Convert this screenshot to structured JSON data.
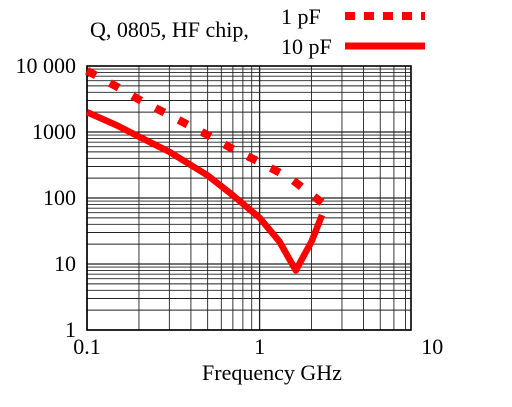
{
  "chart_data": {
    "type": "line",
    "title": "Q, 0805, HF chip,",
    "xlabel": "Frequency GHz",
    "ylabel": "",
    "xscale": "log",
    "yscale": "log",
    "xlim": [
      0.1,
      7
    ],
    "ylim": [
      1,
      10000
    ],
    "grid": true,
    "legend_position": "top-right",
    "x_ticks": [
      {
        "value": 0.1,
        "label": "0.1"
      },
      {
        "value": 1,
        "label": "1"
      },
      {
        "value": 10,
        "label": "10"
      }
    ],
    "y_ticks": [
      {
        "value": 1,
        "label": "1"
      },
      {
        "value": 10,
        "label": "10"
      },
      {
        "value": 100,
        "label": "100"
      },
      {
        "value": 1000,
        "label": "1000"
      },
      {
        "value": 10000,
        "label": "10 000"
      }
    ],
    "series": [
      {
        "name": "1 pF",
        "style": "dotted",
        "color": "#ff0000",
        "points": [
          [
            0.1,
            8500
          ],
          [
            0.15,
            4800
          ],
          [
            0.2,
            3100
          ],
          [
            0.3,
            1800
          ],
          [
            0.5,
            900
          ],
          [
            0.7,
            550
          ],
          [
            1.0,
            350
          ],
          [
            1.5,
            200
          ],
          [
            2.3,
            85
          ]
        ]
      },
      {
        "name": "10 pF",
        "style": "solid",
        "color": "#ff0000",
        "points": [
          [
            0.1,
            2000
          ],
          [
            0.15,
            1250
          ],
          [
            0.2,
            850
          ],
          [
            0.3,
            500
          ],
          [
            0.5,
            220
          ],
          [
            0.7,
            110
          ],
          [
            1.0,
            50
          ],
          [
            1.3,
            22
          ],
          [
            1.62,
            8
          ],
          [
            2.0,
            22
          ],
          [
            2.3,
            55
          ]
        ]
      }
    ]
  }
}
